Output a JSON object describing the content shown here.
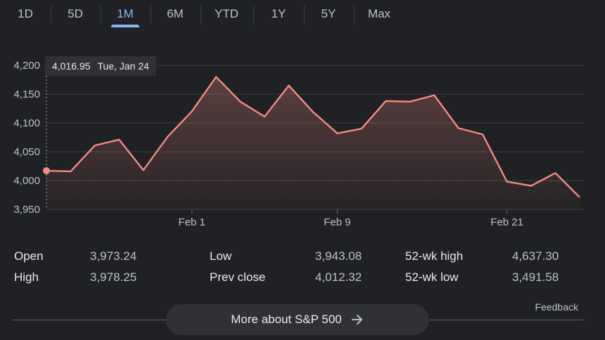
{
  "tabs": [
    {
      "label": "1D",
      "active": false
    },
    {
      "label": "5D",
      "active": false
    },
    {
      "label": "1M",
      "active": true
    },
    {
      "label": "6M",
      "active": false
    },
    {
      "label": "YTD",
      "active": false
    },
    {
      "label": "1Y",
      "active": false
    },
    {
      "label": "5Y",
      "active": false
    },
    {
      "label": "Max",
      "active": false
    }
  ],
  "tooltip": {
    "value": "4,016.95",
    "date": "Tue, Jan 24"
  },
  "chart_data": {
    "type": "area",
    "y_ticks": [
      "4,200",
      "4,150",
      "4,100",
      "4,050",
      "4,000",
      "3,950"
    ],
    "y_tick_values": [
      4200,
      4150,
      4100,
      4050,
      4000,
      3950
    ],
    "ylim": [
      3950,
      4200
    ],
    "x_ticks": [
      {
        "label": "Feb 1",
        "index": 6
      },
      {
        "label": "Feb 9",
        "index": 12
      },
      {
        "label": "Feb 21",
        "index": 19
      }
    ],
    "values": [
      4017,
      4016,
      4061,
      4071,
      4018,
      4076,
      4120,
      4180,
      4137,
      4111,
      4165,
      4119,
      4082,
      4090,
      4138,
      4137,
      4148,
      4091,
      4080,
      3998,
      3991,
      4013,
      3971
    ],
    "highlight_index": 0,
    "colors": {
      "line": "#f28b82",
      "grid": "#3c4043",
      "highlight": "#f28b82"
    },
    "grid": true
  },
  "stats": {
    "open_label": "Open",
    "open_value": "3,973.24",
    "high_label": "High",
    "high_value": "3,978.25",
    "low_label": "Low",
    "low_value": "3,943.08",
    "prev_close_label": "Prev close",
    "prev_close_value": "4,012.32",
    "wk52_high_label": "52-wk high",
    "wk52_high_value": "4,637.30",
    "wk52_low_label": "52-wk low",
    "wk52_low_value": "3,491.58"
  },
  "more_button": {
    "label": "More about S&P 500",
    "icon": "arrow-right-icon"
  },
  "feedback_label": "Feedback"
}
